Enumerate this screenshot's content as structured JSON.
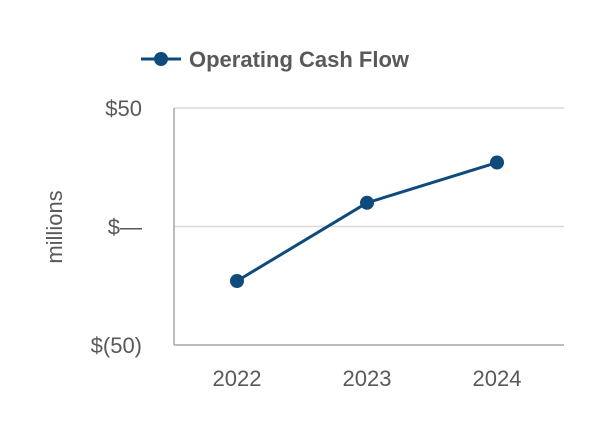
{
  "chart_data": {
    "type": "line",
    "categories": [
      "2022",
      "2023",
      "2024"
    ],
    "series": [
      {
        "name": "Operating Cash Flow",
        "values": [
          -23,
          10,
          27
        ]
      }
    ],
    "ylabel": "millions",
    "ylim": [
      -50,
      50
    ],
    "yticks": [
      {
        "value": 50,
        "label": "$50"
      },
      {
        "value": 0,
        "label": "$—"
      },
      {
        "value": -50,
        "label": "$(50)"
      }
    ],
    "grid": true,
    "legend": "top",
    "colors": {
      "series": "#0e4a7c",
      "axis_text": "#595959",
      "grid": "#d9d9d9",
      "axis": "#a6a6a6"
    }
  }
}
